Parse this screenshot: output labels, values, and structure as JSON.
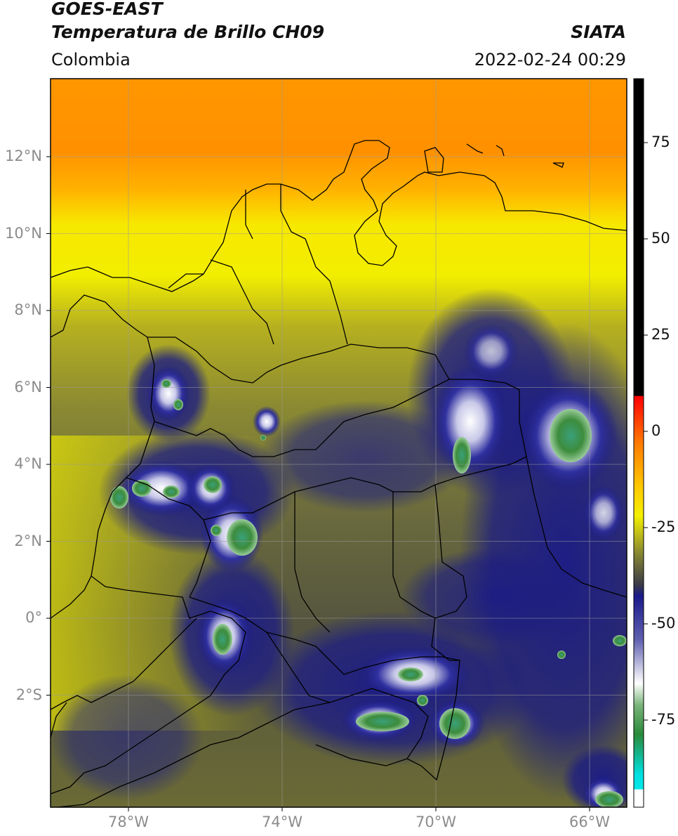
{
  "header": {
    "satellite": "GOES-EAST",
    "product": "Temperatura de Brillo CH09",
    "region": "Colombia",
    "agency": "SIATA",
    "timestamp": "2022-02-24 00:29"
  },
  "map": {
    "lat_range": [
      -5,
      14
    ],
    "lon_range": [
      -80,
      -65
    ],
    "lat_ticks": [
      {
        "value": 12,
        "label": "12°N"
      },
      {
        "value": 10,
        "label": "10°N"
      },
      {
        "value": 8,
        "label": "8°N"
      },
      {
        "value": 6,
        "label": "6°N"
      },
      {
        "value": 4,
        "label": "4°N"
      },
      {
        "value": 2,
        "label": "2°N"
      },
      {
        "value": 0,
        "label": "0°"
      },
      {
        "value": -2,
        "label": "2°S"
      }
    ],
    "lon_ticks": [
      {
        "value": -78,
        "label": "78°W"
      },
      {
        "value": -74,
        "label": "74°W"
      },
      {
        "value": -70,
        "label": "70°W"
      },
      {
        "value": -66,
        "label": "66°W"
      }
    ],
    "gridlines": true
  },
  "colorbar": {
    "range": [
      -95,
      90
    ],
    "ticks": [
      {
        "value": 75,
        "label": "75"
      },
      {
        "value": 50,
        "label": "50"
      },
      {
        "value": 25,
        "label": "25"
      },
      {
        "value": 0,
        "label": "0"
      },
      {
        "value": -25,
        "label": "-25"
      },
      {
        "value": -50,
        "label": "-50"
      },
      {
        "value": -75,
        "label": "-75"
      }
    ],
    "colors": {
      "black": "#000000",
      "red": "#ff1a00",
      "orange": "#ff9a00",
      "yellow": "#f5f000",
      "olive": "#8a8a30",
      "dark_gray": "#3a3a4a",
      "navy": "#1a1a8a",
      "white": "#ffffff",
      "green": "#3c8c3c",
      "cyan": "#00e0e0"
    }
  }
}
